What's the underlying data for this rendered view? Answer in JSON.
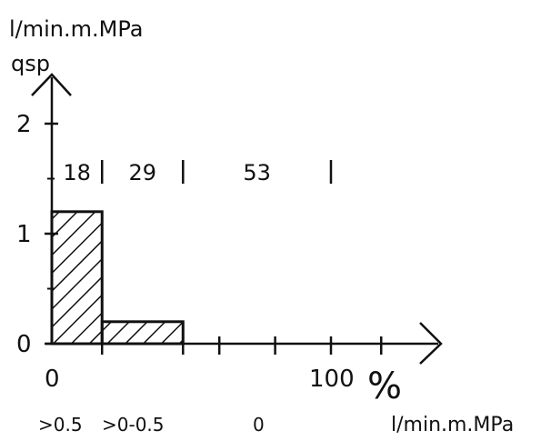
{
  "chart_data": {
    "type": "bar",
    "title": "",
    "ylabel_unit": "l/min.m.MPa",
    "ylabel_symbol": "qsp",
    "y_ticks": [
      "0",
      "1",
      "2"
    ],
    "ylim": [
      0,
      2.5
    ],
    "xlim": [
      0,
      140
    ],
    "x_ticks": [
      "0",
      "100"
    ],
    "x_unit": "%",
    "bars": [
      {
        "x_start": 0,
        "x_end": 18,
        "value": 1.2,
        "category": ">0.5",
        "share_label": "18"
      },
      {
        "x_start": 18,
        "x_end": 47,
        "value": 0.2,
        "category": ">0-0.5",
        "share_label": "29"
      },
      {
        "x_start": 47,
        "x_end": 100,
        "value": 0.0,
        "category": "0",
        "share_label": "53"
      }
    ],
    "category_axis_unit": "l/min.m.MPa"
  }
}
